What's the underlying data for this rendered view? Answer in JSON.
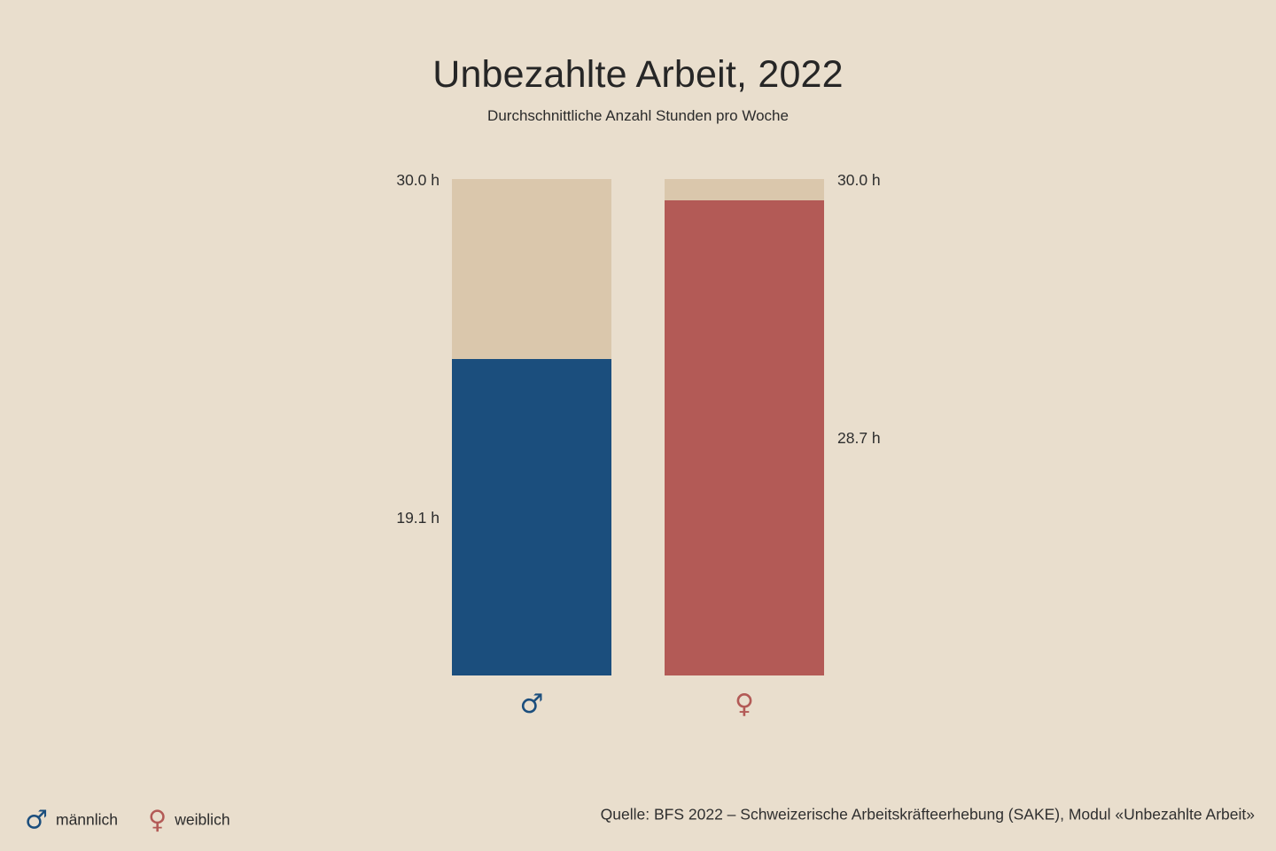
{
  "title": "Unbezahlte Arbeit, 2022",
  "subtitle": "Durchschnittliche Anzahl Stunden pro Woche",
  "source": "Quelle: BFS 2022 – Schweizerische Arbeitskräfteerhebung (SAKE), Modul «Unbezahlte Arbeit»",
  "legend": [
    {
      "symbol": "♂",
      "label": "männlich",
      "color": "#1B4E7D"
    },
    {
      "symbol": "♀",
      "label": "weiblich",
      "color": "#B35A56"
    }
  ],
  "chart_data": {
    "type": "bar",
    "title": "Unbezahlte Arbeit, 2022",
    "subtitle": "Durchschnittliche Anzahl Stunden pro Woche",
    "unit": "h",
    "ylim": [
      0,
      30
    ],
    "grid": false,
    "legend_position": "bottom-left",
    "categories": [
      "männlich",
      "weiblich"
    ],
    "values": [
      19.1,
      28.7
    ],
    "bars": [
      {
        "category": "männlich",
        "symbol": "♂",
        "value": 19.1,
        "value_label": "19.1 h",
        "max": 30.0,
        "max_label": "30.0 h",
        "color": "#1B4E7D",
        "label_side": "left"
      },
      {
        "category": "weiblich",
        "symbol": "♀",
        "value": 28.7,
        "value_label": "28.7 h",
        "max": 30.0,
        "max_label": "30.0 h",
        "color": "#B35A56",
        "label_side": "right"
      }
    ],
    "colors": {
      "background": "#E9DECD",
      "track": "#DAC7AC",
      "male": "#1B4E7D",
      "female": "#B35A56"
    }
  }
}
